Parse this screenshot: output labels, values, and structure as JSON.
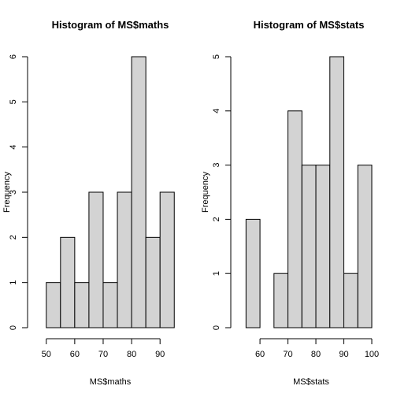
{
  "chart_data": [
    {
      "type": "bar",
      "title": "Histogram of MS$maths",
      "xlabel": "MS$maths",
      "ylabel": "Frequency",
      "bin_edges": [
        50,
        55,
        60,
        65,
        70,
        75,
        80,
        85,
        90,
        95
      ],
      "values": [
        1,
        2,
        1,
        3,
        1,
        3,
        6,
        2,
        3
      ],
      "x_ticks": [
        50,
        60,
        70,
        80,
        90
      ],
      "y_ticks": [
        0,
        1,
        2,
        3,
        4,
        5,
        6
      ],
      "ylim": [
        0,
        6
      ],
      "grid": false
    },
    {
      "type": "bar",
      "title": "Histogram of MS$stats",
      "xlabel": "MS$stats",
      "ylabel": "Frequency",
      "bin_edges": [
        55,
        60,
        65,
        70,
        75,
        80,
        85,
        90,
        95,
        100
      ],
      "values": [
        2,
        0,
        1,
        4,
        3,
        3,
        5,
        1,
        3
      ],
      "x_ticks": [
        60,
        70,
        80,
        90,
        100
      ],
      "y_ticks": [
        0,
        1,
        2,
        3,
        4,
        5
      ],
      "ylim": [
        0,
        5
      ],
      "grid": false
    }
  ]
}
